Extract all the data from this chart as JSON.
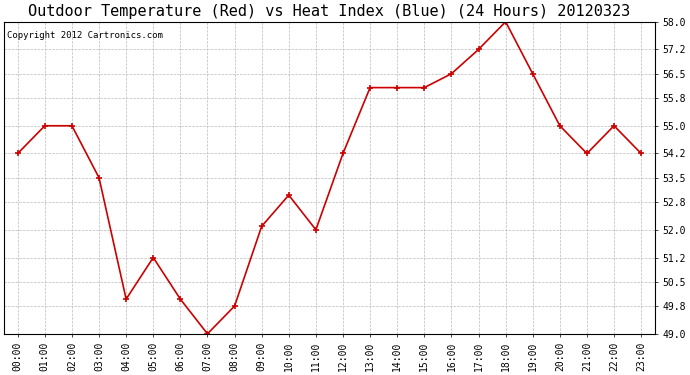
{
  "title": "Outdoor Temperature (Red) vs Heat Index (Blue) (24 Hours) 20120323",
  "copyright_text": "Copyright 2012 Cartronics.com",
  "hours": [
    "00:00",
    "01:00",
    "02:00",
    "03:00",
    "04:00",
    "05:00",
    "06:00",
    "07:00",
    "08:00",
    "09:00",
    "10:00",
    "11:00",
    "12:00",
    "13:00",
    "14:00",
    "15:00",
    "16:00",
    "17:00",
    "18:00",
    "19:00",
    "20:00",
    "21:00",
    "22:00",
    "23:00"
  ],
  "temp_red": [
    54.2,
    55.0,
    55.0,
    53.5,
    50.0,
    51.2,
    50.0,
    49.0,
    49.8,
    52.1,
    53.0,
    52.0,
    54.2,
    56.1,
    56.1,
    56.1,
    56.5,
    57.2,
    58.0,
    56.5,
    55.0,
    54.2,
    55.0,
    54.2
  ],
  "ylim": [
    49.0,
    58.0
  ],
  "yticks": [
    49.0,
    49.8,
    50.5,
    51.2,
    52.0,
    52.8,
    53.5,
    54.2,
    55.0,
    55.8,
    56.5,
    57.2,
    58.0
  ],
  "bg_color": "#ffffff",
  "plot_bg_color": "#ffffff",
  "grid_color": "#bbbbbb",
  "line_color_red": "#cc0000",
  "title_fontsize": 11,
  "copyright_fontsize": 6.5,
  "tick_fontsize": 7,
  "xlabel_fontsize": 7
}
